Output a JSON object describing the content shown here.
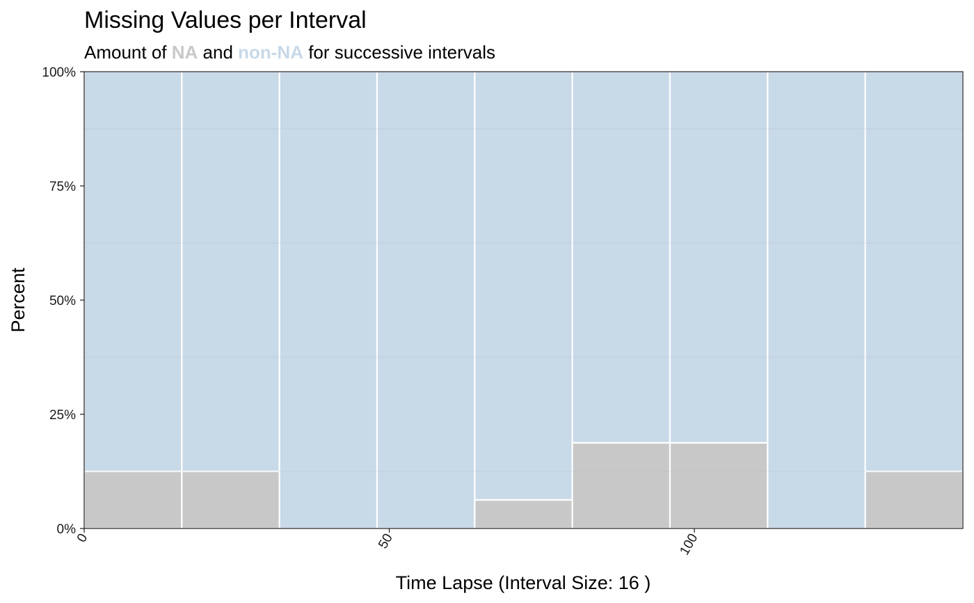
{
  "chart_data": {
    "type": "bar",
    "stacked": "percent",
    "title": "Missing Values per Interval",
    "subtitle": {
      "prefix": "Amount of ",
      "na": "NA",
      "middle": " and ",
      "non_na": "non-NA",
      "suffix": " for successive intervals"
    },
    "xlabel": "Time Lapse (Interval Size: 16 )",
    "ylabel": "Percent",
    "interval_size": 16,
    "xlim": [
      0,
      144
    ],
    "ylim": [
      0,
      1
    ],
    "xticks": [
      0,
      50,
      100
    ],
    "xtick_labels": [
      "0",
      "50",
      "100"
    ],
    "yticks": [
      0,
      0.25,
      0.5,
      0.75,
      1
    ],
    "ytick_labels": [
      "0%",
      "25%",
      "50%",
      "75%",
      "100%"
    ],
    "x_starts": [
      0,
      16,
      32,
      48,
      64,
      80,
      96,
      112,
      128
    ],
    "series": [
      {
        "key": "NA",
        "values": [
          0.125,
          0.125,
          0,
          0,
          0.0625,
          0.1875,
          0.1875,
          0,
          0.125
        ]
      },
      {
        "key": "non-NA",
        "values": [
          0.875,
          0.875,
          1,
          1,
          0.9375,
          0.8125,
          0.8125,
          1,
          0.875
        ]
      }
    ],
    "colors": {
      "NA": "#c8c8c8",
      "non_NA": "#c8d9e8",
      "bar_border": "#ffffff",
      "grid": "#b3bfc9"
    },
    "grid": true,
    "legend": "none"
  }
}
